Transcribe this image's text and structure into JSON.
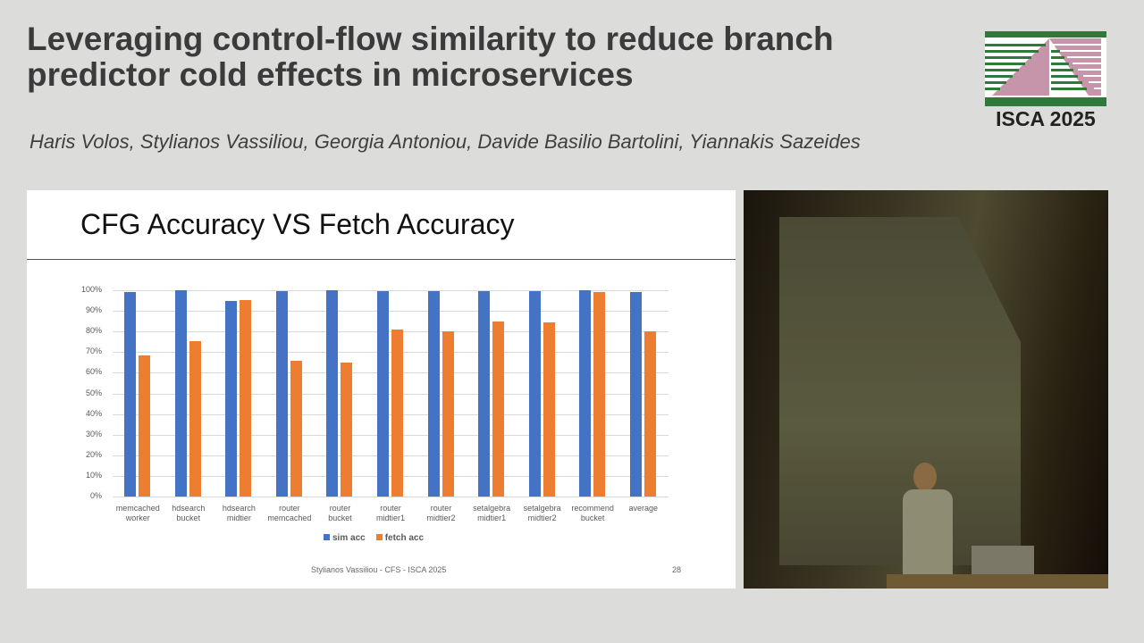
{
  "header": {
    "title": "Leveraging control-flow similarity to reduce branch predictor cold effects in microservices",
    "authors": "Haris Volos, Stylianos Vassiliou, Georgia Antoniou, Davide Basilio Bartolini, Yiannakis Sazeides",
    "logo_text": "ISCA 2025"
  },
  "slide": {
    "title": "CFG Accuracy VS Fetch Accuracy",
    "footer": "Stylianos Vassiliou - CFS - ISCA 2025",
    "page_number": "28"
  },
  "colors": {
    "sim": "#4472c4",
    "fetch": "#ed7d31"
  },
  "chart_data": {
    "type": "bar",
    "title": "CFG Accuracy VS Fetch Accuracy",
    "xlabel": "",
    "ylabel": "",
    "ylim": [
      0,
      100
    ],
    "yticks": [
      "0%",
      "10%",
      "20%",
      "30%",
      "40%",
      "50%",
      "60%",
      "70%",
      "80%",
      "90%",
      "100%"
    ],
    "grid": true,
    "legend_position": "bottom",
    "categories": [
      "memcached worker",
      "hdsearch bucket",
      "hdsearch midtier",
      "router memcached",
      "router bucket",
      "router midtier1",
      "router midtier2",
      "setalgebra midtier1",
      "setalgebra midtier2",
      "recommend bucket",
      "average"
    ],
    "category_lines": [
      [
        "memcached",
        "worker"
      ],
      [
        "hdsearch",
        "bucket"
      ],
      [
        "hdsearch",
        "midtier"
      ],
      [
        "router",
        "memcached"
      ],
      [
        "router",
        "bucket"
      ],
      [
        "router",
        "midtier1"
      ],
      [
        "router",
        "midtier2"
      ],
      [
        "setalgebra",
        "midtier1"
      ],
      [
        "setalgebra",
        "midtier2"
      ],
      [
        "recommend",
        "bucket"
      ],
      [
        "average",
        ""
      ]
    ],
    "series": [
      {
        "name": "sim acc",
        "values": [
          99,
          100,
          95,
          99.7,
          100,
          99.5,
          99.5,
          99.5,
          99.5,
          100,
          99.2
        ]
      },
      {
        "name": "fetch acc",
        "values": [
          68.5,
          75.5,
          95.3,
          65.8,
          65,
          81,
          80.3,
          85,
          84.3,
          99.2,
          80.2
        ]
      }
    ]
  }
}
